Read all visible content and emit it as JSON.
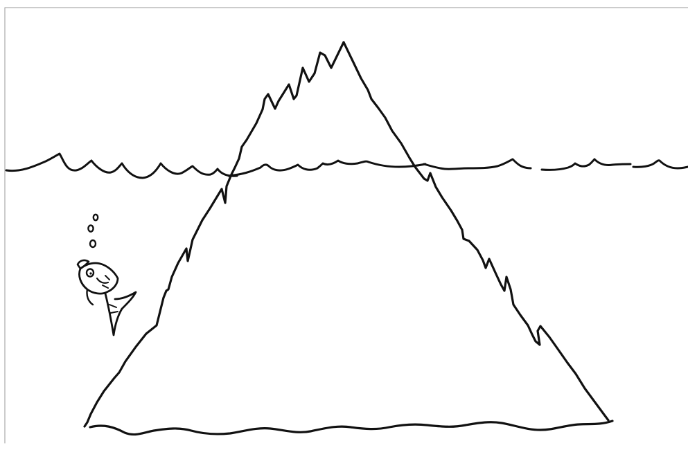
{
  "colors": {
    "background": "#ffffff",
    "ink": "#111111",
    "frame": "#9a9a9a"
  }
}
